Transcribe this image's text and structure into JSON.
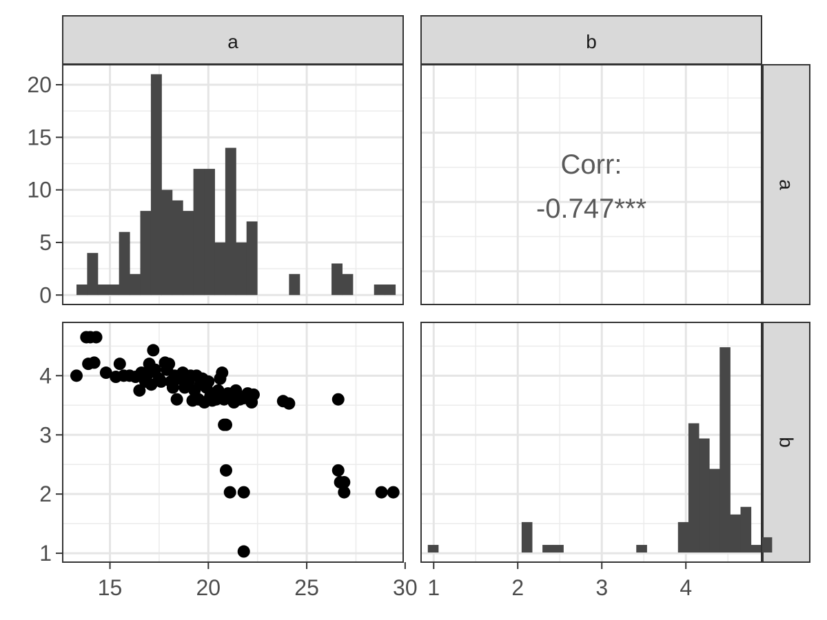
{
  "chart_data": {
    "type": "pairs",
    "variables": [
      "a",
      "b"
    ],
    "strips": {
      "col_a": "a",
      "col_b": "b",
      "row_a": "a",
      "row_b": "b"
    },
    "axes": {
      "a": {
        "lim": [
          12.6,
          29.9
        ],
        "ticks": [
          15,
          20,
          25,
          30
        ],
        "tick_labels": [
          "15",
          "20",
          "25",
          "30"
        ]
      },
      "b": {
        "lim": [
          0.85,
          4.9
        ],
        "ticks": [
          1,
          2,
          3,
          4
        ],
        "tick_labels": [
          "1",
          "2",
          "3",
          "4"
        ]
      },
      "count_a": {
        "lim": [
          -0.9,
          21.9
        ],
        "ticks": [
          0,
          5,
          10,
          15,
          20
        ],
        "tick_labels": [
          "0",
          "5",
          "10",
          "15",
          "20"
        ]
      }
    },
    "hist_a": {
      "type": "bar",
      "bin_start": 13.3,
      "bin_width": 0.54,
      "counts": [
        1,
        4,
        1,
        1,
        6,
        2,
        8,
        21,
        10,
        9,
        8,
        12,
        12,
        5,
        14,
        5,
        7,
        0,
        0,
        0,
        2,
        0,
        0,
        0,
        3,
        2,
        0,
        0,
        1,
        1
      ]
    },
    "hist_b": {
      "type": "bar",
      "bin_start": 0.93,
      "bin_width": 0.124,
      "counts": [
        1,
        0,
        0,
        0,
        0,
        0,
        0,
        0,
        0,
        4,
        0,
        1,
        1,
        0,
        0,
        0,
        0,
        0,
        0,
        0,
        1,
        0,
        0,
        0,
        4,
        17,
        15,
        11,
        27,
        5,
        6,
        1,
        2
      ]
    },
    "hist_b_count_lim": [
      0,
      29
    ],
    "correlation": {
      "label": "Corr:",
      "value": "-0.747***"
    },
    "scatter": {
      "type": "scatter",
      "points": [
        [
          13.3,
          4.0
        ],
        [
          13.8,
          4.65
        ],
        [
          14.0,
          4.65
        ],
        [
          14.3,
          4.65
        ],
        [
          13.9,
          4.2
        ],
        [
          14.2,
          4.22
        ],
        [
          14.8,
          4.05
        ],
        [
          15.3,
          3.98
        ],
        [
          15.5,
          4.2
        ],
        [
          15.7,
          4.0
        ],
        [
          16.0,
          4.0
        ],
        [
          16.3,
          3.98
        ],
        [
          16.5,
          3.75
        ],
        [
          16.6,
          4.05
        ],
        [
          16.8,
          3.9
        ],
        [
          17.0,
          4.2
        ],
        [
          17.0,
          4.05
        ],
        [
          17.1,
          3.85
        ],
        [
          17.2,
          4.43
        ],
        [
          17.3,
          4.1
        ],
        [
          17.5,
          3.95
        ],
        [
          17.6,
          3.9
        ],
        [
          17.8,
          4.22
        ],
        [
          17.9,
          4.1
        ],
        [
          18.0,
          4.2
        ],
        [
          18.1,
          3.9
        ],
        [
          18.2,
          3.8
        ],
        [
          18.3,
          4.0
        ],
        [
          18.4,
          3.6
        ],
        [
          18.5,
          3.95
        ],
        [
          18.7,
          4.05
        ],
        [
          18.8,
          3.8
        ],
        [
          19.0,
          3.9
        ],
        [
          19.1,
          4.0
        ],
        [
          19.2,
          3.58
        ],
        [
          19.3,
          3.75
        ],
        [
          19.4,
          4.0
        ],
        [
          19.5,
          3.6
        ],
        [
          19.6,
          3.85
        ],
        [
          19.7,
          3.95
        ],
        [
          19.8,
          3.55
        ],
        [
          19.9,
          3.8
        ],
        [
          20.0,
          3.9
        ],
        [
          20.1,
          3.65
        ],
        [
          20.2,
          3.58
        ],
        [
          20.3,
          3.7
        ],
        [
          20.4,
          3.6
        ],
        [
          20.5,
          3.75
        ],
        [
          20.6,
          3.95
        ],
        [
          20.7,
          4.05
        ],
        [
          20.8,
          3.6
        ],
        [
          20.8,
          3.17
        ],
        [
          20.9,
          3.17
        ],
        [
          20.9,
          2.4
        ],
        [
          21.0,
          3.7
        ],
        [
          21.1,
          2.03
        ],
        [
          21.2,
          3.65
        ],
        [
          21.3,
          3.55
        ],
        [
          21.4,
          3.75
        ],
        [
          21.6,
          3.6
        ],
        [
          21.8,
          3.62
        ],
        [
          21.8,
          2.03
        ],
        [
          21.8,
          1.03
        ],
        [
          22.0,
          3.7
        ],
        [
          22.1,
          3.6
        ],
        [
          22.2,
          3.55
        ],
        [
          22.3,
          3.68
        ],
        [
          23.8,
          3.57
        ],
        [
          24.1,
          3.53
        ],
        [
          26.6,
          3.6
        ],
        [
          26.6,
          2.4
        ],
        [
          26.7,
          2.2
        ],
        [
          26.9,
          2.2
        ],
        [
          26.9,
          2.03
        ],
        [
          28.8,
          2.03
        ],
        [
          29.4,
          2.03
        ]
      ]
    },
    "grid": true
  }
}
